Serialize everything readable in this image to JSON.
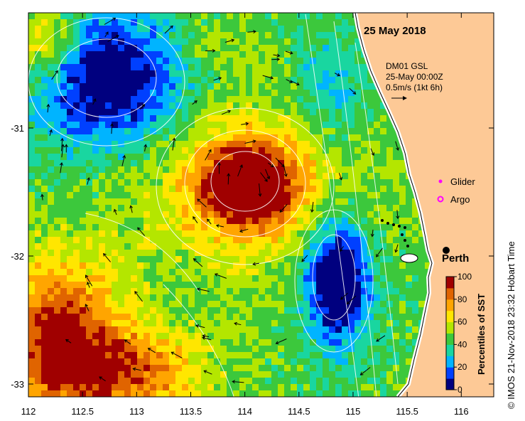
{
  "map": {
    "date_label": "25 May 2018",
    "product": "DM01 GSL",
    "time_label": "25-May 00:00Z",
    "scale_label": "0.5m/s (1kt 6h)",
    "x_ticks": [
      "112",
      "112.5",
      "113",
      "113.5",
      "114",
      "114.5",
      "115",
      "115.5",
      "116"
    ],
    "x_tick_values": [
      112,
      112.5,
      113,
      113.5,
      114,
      114.5,
      115,
      115.5,
      116
    ],
    "y_ticks": [
      "-31",
      "-32",
      "-33"
    ],
    "y_tick_values": [
      -31,
      -32,
      -33
    ],
    "lon_range": [
      112,
      116.3
    ],
    "lat_range": [
      -33.1,
      -30.1
    ],
    "legend": {
      "glider": "Glider",
      "argo": "Argo"
    },
    "city": "Perth",
    "colorbar": {
      "title": "Percentiles of SST",
      "ticks": [
        "0",
        "20",
        "40",
        "60",
        "80",
        "100"
      ],
      "colors": [
        "#00007f",
        "#0040ff",
        "#00b4ff",
        "#19d6a0",
        "#3cc83c",
        "#b4e600",
        "#ffe600",
        "#ffa500",
        "#e06400",
        "#a00000"
      ]
    },
    "credit": "© IMOS 21-Nov-2018 23:32 Hobart Time",
    "land_color": "#fdc996"
  }
}
